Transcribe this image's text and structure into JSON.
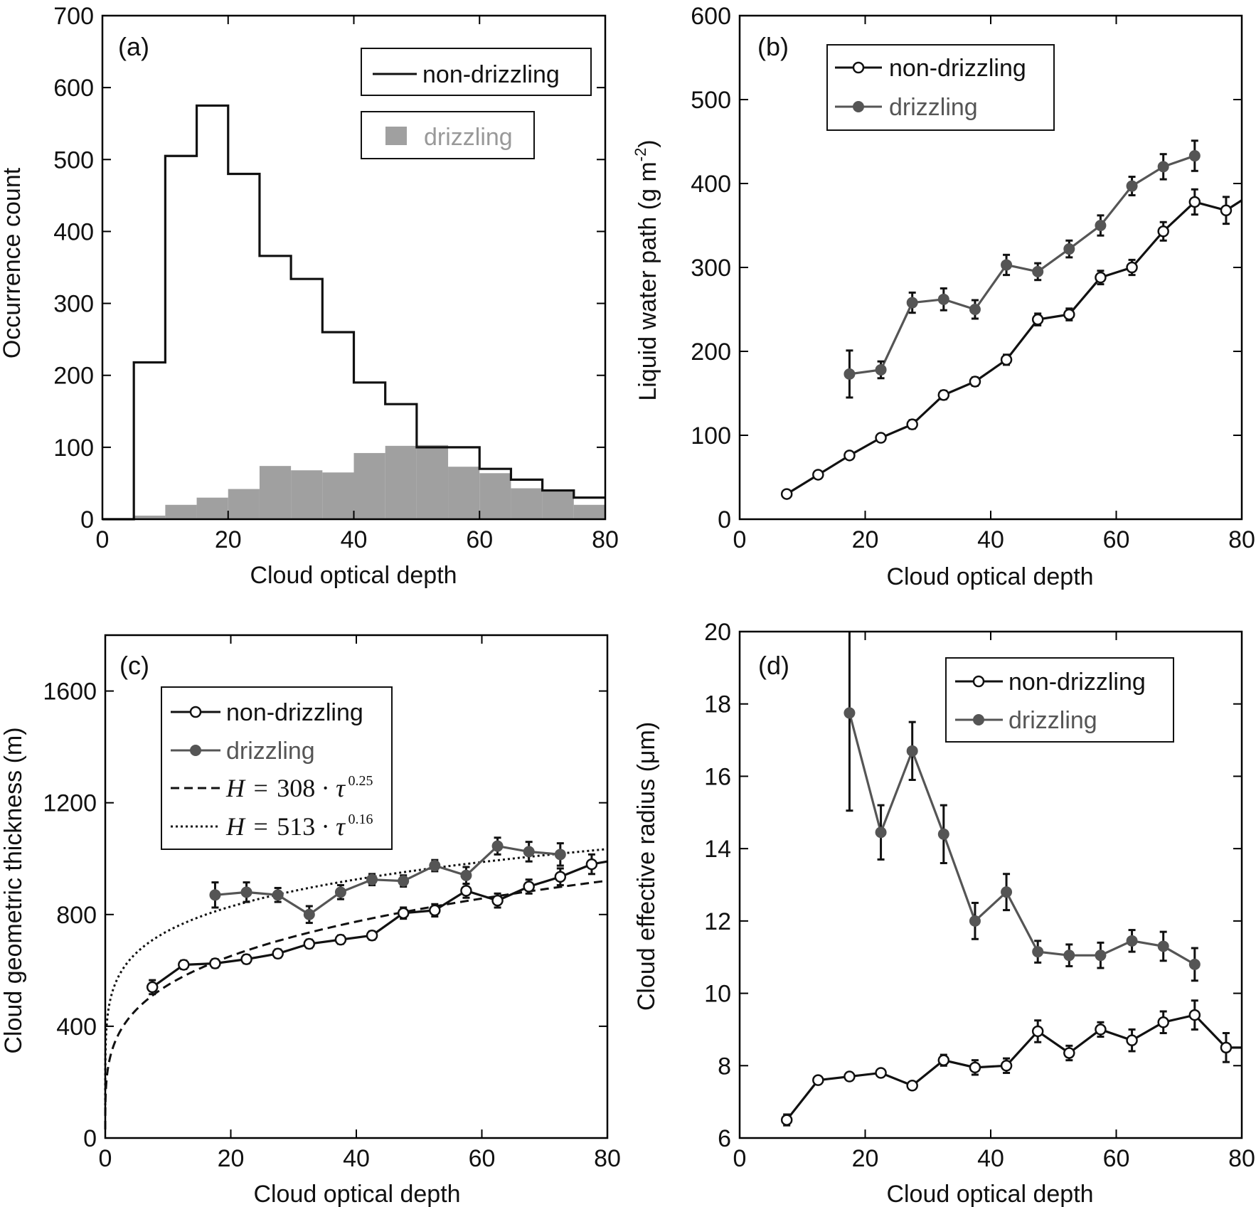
{
  "chart_data": [
    {
      "id": "a",
      "type": "bar",
      "panel_label": "(a)",
      "xlabel": "Cloud optical depth",
      "ylabel": "Occurrence count",
      "xlim": [
        0,
        80
      ],
      "ylim": [
        0,
        700
      ],
      "xticks": [
        0,
        20,
        40,
        60,
        80
      ],
      "yticks": [
        0,
        100,
        200,
        300,
        400,
        500,
        600,
        700
      ],
      "bin_edges": [
        5,
        10,
        15,
        20,
        25,
        30,
        35,
        40,
        45,
        50,
        55,
        60,
        65,
        70,
        75,
        80
      ],
      "series": [
        {
          "name": "non-drizzling",
          "style": "step",
          "color": "#111111",
          "values": [
            218,
            505,
            575,
            480,
            366,
            334,
            260,
            190,
            160,
            100,
            100,
            70,
            55,
            40,
            30
          ]
        },
        {
          "name": "drizzling",
          "style": "filled",
          "color": "#a0a0a0",
          "values": [
            5,
            20,
            30,
            42,
            74,
            68,
            65,
            92,
            102,
            103,
            73,
            64,
            43,
            40,
            20
          ]
        }
      ],
      "legend": "top-right"
    },
    {
      "id": "b",
      "type": "line",
      "panel_label": "(b)",
      "xlabel": "Cloud optical depth",
      "ylabel": "Liquid water path (g m",
      "ylabel_sup": "-2",
      "ylabel_end": ")",
      "xlim": [
        0,
        80
      ],
      "ylim": [
        0,
        600
      ],
      "xticks": [
        0,
        20,
        40,
        60,
        80
      ],
      "yticks": [
        0,
        100,
        200,
        300,
        400,
        500,
        600
      ],
      "series": [
        {
          "name": "non-drizzling",
          "color": "#111111",
          "marker": "open",
          "x": [
            7.5,
            12.5,
            17.5,
            22.5,
            27.5,
            32.5,
            37.5,
            42.5,
            47.5,
            52.5,
            57.5,
            62.5,
            67.5,
            72.5,
            77.5,
            80
          ],
          "y": [
            30,
            53,
            76,
            97,
            113,
            148,
            164,
            190,
            238,
            244,
            288,
            300,
            343,
            378,
            368,
            380
          ],
          "err": [
            4,
            4,
            4,
            4,
            5,
            5,
            5,
            6,
            7,
            7,
            8,
            9,
            11,
            15,
            16,
            0
          ]
        },
        {
          "name": "drizzling",
          "color": "#555555",
          "marker": "filled",
          "x": [
            17.5,
            22.5,
            27.5,
            32.5,
            37.5,
            42.5,
            47.5,
            52.5,
            57.5,
            62.5,
            67.5,
            72.5
          ],
          "y": [
            173,
            178,
            258,
            262,
            250,
            303,
            295,
            322,
            350,
            397,
            420,
            433
          ],
          "err": [
            28,
            10,
            12,
            13,
            11,
            12,
            10,
            10,
            12,
            11,
            15,
            18
          ]
        }
      ],
      "legend": "top-left"
    },
    {
      "id": "c",
      "type": "line",
      "panel_label": "(c)",
      "xlabel": "Cloud optical depth",
      "ylabel": "Cloud geometric thickness (m)",
      "xlim": [
        0,
        80
      ],
      "ylim": [
        0,
        1800
      ],
      "xticks": [
        0,
        20,
        40,
        60,
        80
      ],
      "yticks": [
        0,
        400,
        800,
        1200,
        1600
      ],
      "series": [
        {
          "name": "non-drizzling",
          "color": "#111111",
          "marker": "open",
          "x": [
            7.5,
            12.5,
            17.5,
            22.5,
            27.5,
            32.5,
            37.5,
            42.5,
            47.5,
            52.5,
            57.5,
            62.5,
            67.5,
            72.5,
            77.5,
            80
          ],
          "y": [
            540,
            620,
            625,
            640,
            660,
            695,
            710,
            725,
            805,
            815,
            885,
            850,
            900,
            935,
            980,
            990
          ],
          "err": [
            25,
            15,
            15,
            15,
            15,
            15,
            15,
            15,
            20,
            22,
            25,
            25,
            25,
            30,
            35,
            0
          ]
        },
        {
          "name": "drizzling",
          "color": "#555555",
          "marker": "filled",
          "x": [
            17.5,
            22.5,
            27.5,
            32.5,
            37.5,
            42.5,
            47.5,
            52.5,
            57.5,
            62.5,
            67.5,
            72.5
          ],
          "y": [
            870,
            880,
            870,
            800,
            880,
            925,
            920,
            975,
            940,
            1045,
            1025,
            1015
          ],
          "err": [
            45,
            35,
            25,
            30,
            25,
            20,
            20,
            20,
            30,
            30,
            35,
            40
          ]
        }
      ],
      "fits": [
        {
          "label_var": "H",
          "label_eq": "=",
          "label_coef": "308",
          "label_tau": "τ",
          "label_exp": "0.25",
          "coef": 308,
          "exp": 0.25,
          "style": "dashed"
        },
        {
          "label_var": "H",
          "label_eq": "=",
          "label_coef": "513",
          "label_tau": "τ",
          "label_exp": "0.16",
          "coef": 513,
          "exp": 0.16,
          "style": "dotted"
        }
      ],
      "legend": "upper-left"
    },
    {
      "id": "d",
      "type": "line",
      "panel_label": "(d)",
      "xlabel": "Cloud optical depth",
      "ylabel": "Cloud effective radius (μm)",
      "xlim": [
        0,
        80
      ],
      "ylim": [
        6,
        20
      ],
      "xticks": [
        0,
        20,
        40,
        60,
        80
      ],
      "yticks": [
        6,
        8,
        10,
        12,
        14,
        16,
        18,
        20
      ],
      "series": [
        {
          "name": "non-drizzling",
          "color": "#111111",
          "marker": "open",
          "x": [
            7.5,
            12.5,
            17.5,
            22.5,
            27.5,
            32.5,
            37.5,
            42.5,
            47.5,
            52.5,
            57.5,
            62.5,
            67.5,
            72.5,
            77.5,
            80
          ],
          "y": [
            6.5,
            7.6,
            7.7,
            7.8,
            7.45,
            8.15,
            7.95,
            8.0,
            8.95,
            8.35,
            9.0,
            8.7,
            9.2,
            9.4,
            8.5,
            8.5
          ],
          "err": [
            0.15,
            0.1,
            0.1,
            0.1,
            0.1,
            0.15,
            0.2,
            0.2,
            0.3,
            0.2,
            0.2,
            0.3,
            0.3,
            0.4,
            0.4,
            0
          ]
        },
        {
          "name": "drizzling",
          "color": "#555555",
          "marker": "filled",
          "x": [
            17.5,
            22.5,
            27.5,
            32.5,
            37.5,
            42.5,
            47.5,
            52.5,
            57.5,
            62.5,
            67.5,
            72.5
          ],
          "y": [
            17.75,
            14.45,
            16.7,
            14.4,
            12.0,
            12.8,
            11.15,
            11.05,
            11.05,
            11.45,
            11.3,
            10.8
          ],
          "err": [
            2.7,
            0.75,
            0.8,
            0.8,
            0.5,
            0.5,
            0.3,
            0.3,
            0.35,
            0.3,
            0.4,
            0.45
          ]
        }
      ],
      "legend": "top-right"
    }
  ]
}
